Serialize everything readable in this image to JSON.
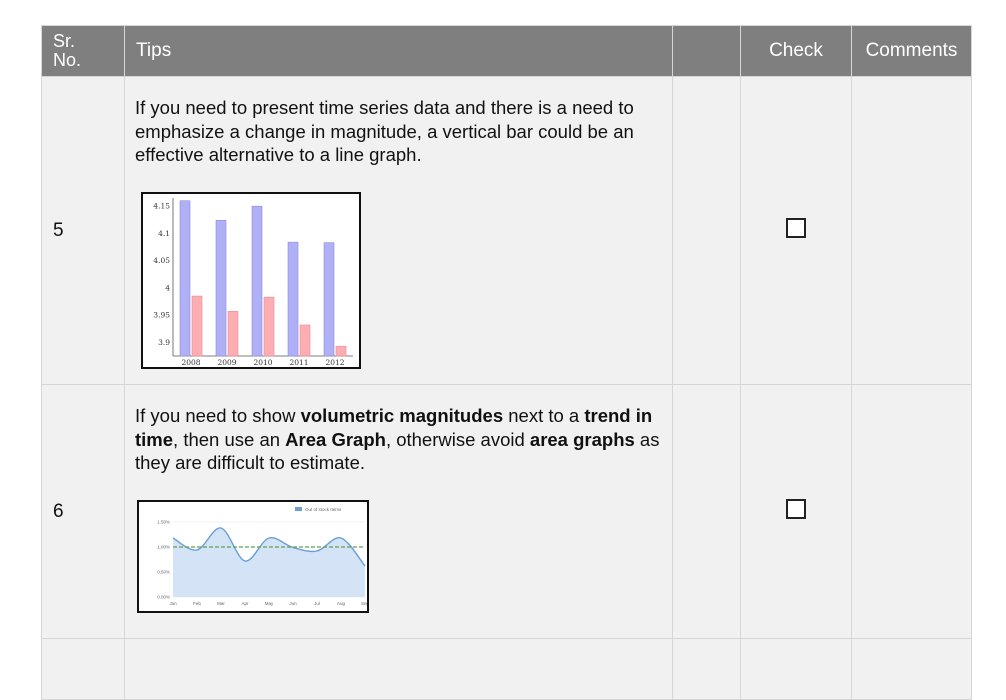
{
  "table": {
    "headers": {
      "no_line1": "Sr.",
      "no_line2": "No.",
      "tips": "Tips",
      "check": "Check",
      "comments": "Comments"
    },
    "rows": [
      {
        "number": "5",
        "tip_text": "If you need to present time series data and there is a need to emphasize a change in magnitude, a vertical bar could be an effective alternative to a line graph.",
        "checked": false
      },
      {
        "number": "6",
        "tip_parts": {
          "p1": "If you need to show ",
          "b1": "volumetric magnitudes",
          "p2": " next to a ",
          "b2": "trend in time",
          "p3": ", then use an ",
          "b3": "Area Graph",
          "p4": ", otherwise avoid ",
          "b4": "area graphs",
          "p5": " as they are difficult to estimate."
        },
        "checked": false
      }
    ]
  },
  "chart_data": [
    {
      "type": "bar",
      "categories": [
        "2008",
        "2009",
        "2010",
        "2011",
        "2012"
      ],
      "series": [
        {
          "values": [
            4.16,
            4.124,
            4.15,
            4.084,
            4.083
          ]
        },
        {
          "values": [
            3.985,
            3.957,
            3.983,
            3.932,
            3.893
          ]
        }
      ],
      "y_ticks": [
        "3.9",
        "3.95",
        "4",
        "4.05",
        "4.1",
        "4.15"
      ],
      "ylim": [
        3.875,
        4.165
      ],
      "colors": [
        "#b0b0f6",
        "#fcaeb2"
      ]
    },
    {
      "type": "area",
      "legend": "Out of stock Items",
      "categories": [
        "Jan",
        "Feb",
        "Mar",
        "Apr",
        "May",
        "Jun",
        "Jul",
        "Aug",
        "Sep"
      ],
      "values": [
        1.18,
        0.94,
        1.38,
        0.72,
        1.18,
        0.99,
        0.92,
        1.18,
        0.62
      ],
      "reference_line": 1.0,
      "y_ticks": [
        "0.00%",
        "0.50%",
        "1.00%",
        "1.50%"
      ],
      "ylim": [
        0,
        1.5
      ],
      "colors": {
        "line": "#6a9ed6",
        "fill": "#d4e3f6",
        "reference": "#5aa35a"
      }
    }
  ]
}
